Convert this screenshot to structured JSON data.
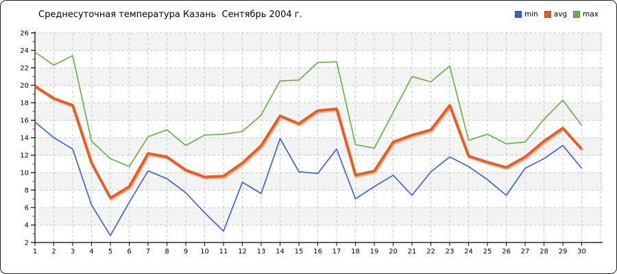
{
  "chart": {
    "title": "Среднесуточная температура Казань  Сентябрь 2004 г."
  },
  "chart_data": {
    "type": "line",
    "title": "Среднесуточная температура Казань  Сентябрь 2004 г.",
    "x": [
      1,
      2,
      3,
      4,
      5,
      6,
      7,
      8,
      9,
      10,
      11,
      12,
      13,
      14,
      15,
      16,
      17,
      18,
      19,
      20,
      21,
      22,
      23,
      24,
      25,
      26,
      27,
      28,
      29,
      30
    ],
    "xlabel": "",
    "ylabel": "",
    "ylim": [
      2,
      26
    ],
    "ytick_step": 2,
    "grid": "dashed",
    "legend_position": "top-right",
    "band_fill": "#f3f3f3",
    "gridline_color": "#c9c9c9",
    "axis_color": "#000000",
    "minor_tick_color": "#cc0000",
    "series": [
      {
        "name": "min",
        "color": "#3d63d1",
        "values": [
          15.8,
          14.0,
          12.7,
          6.3,
          2.8,
          6.6,
          10.2,
          9.3,
          7.7,
          5.4,
          3.3,
          8.9,
          7.6,
          13.9,
          10.1,
          9.9,
          12.7,
          7.0,
          8.4,
          9.7,
          7.4,
          10.1,
          11.8,
          10.7,
          9.2,
          7.4,
          10.5,
          11.6,
          13.1,
          10.5
        ]
      },
      {
        "name": "avg",
        "color": "#e05f28",
        "halo_color": "#f6b088",
        "values": [
          19.9,
          18.5,
          17.7,
          11.1,
          7.1,
          8.4,
          12.2,
          11.8,
          10.3,
          9.5,
          9.6,
          11.1,
          13.1,
          16.5,
          15.6,
          17.1,
          17.3,
          9.7,
          10.2,
          13.5,
          14.3,
          14.9,
          17.7,
          11.9,
          11.2,
          10.6,
          11.8,
          13.6,
          15.1,
          12.7
        ]
      },
      {
        "name": "max",
        "color": "#67b14b",
        "values": [
          23.8,
          22.3,
          23.4,
          13.6,
          11.6,
          10.7,
          14.1,
          14.9,
          13.1,
          14.3,
          14.4,
          14.7,
          16.6,
          20.5,
          20.6,
          22.6,
          22.7,
          13.2,
          12.8,
          16.9,
          21.0,
          20.4,
          22.2,
          13.7,
          14.4,
          13.3,
          13.5,
          16.1,
          18.3,
          15.4
        ]
      }
    ]
  }
}
